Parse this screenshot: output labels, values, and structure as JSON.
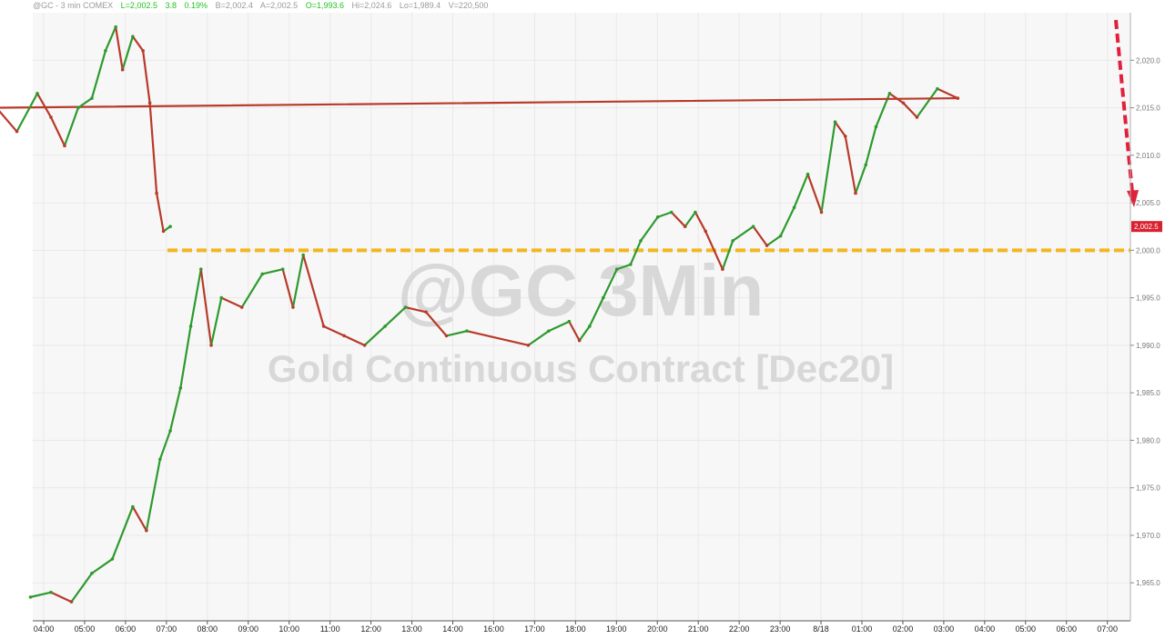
{
  "header": {
    "symbol": "@GC - 3 min  COMEX",
    "last": "L=2,002.5",
    "change": "3.8",
    "change_pct": "0.19%",
    "bid": "B=2,002.4",
    "ask": "A=2,002.5",
    "open": "O=1,993.6",
    "high": "Hi=2,024.6",
    "low": "Lo=1,989.4",
    "volume": "V=220,500"
  },
  "watermark": {
    "line1": "@GC 3Min",
    "line2": "Gold Continuous Contract [Dec20]"
  },
  "colors": {
    "up": "#2e9a2e",
    "down": "#b83a2a",
    "level_line": "#f2b61f",
    "arrow": "#e0213b",
    "last_price_tag": "#d9202f",
    "plot_bg": "#f7f7f7",
    "watermark": "#d4d4d4"
  },
  "chart_data": {
    "type": "line",
    "title": "",
    "xlabel": "",
    "ylabel": "",
    "ylim": [
      1961,
      2025
    ],
    "y_ticks": [
      1965.0,
      1970.0,
      1975.0,
      1980.0,
      1985.0,
      1990.0,
      1995.0,
      2000.0,
      2005.0,
      2010.0,
      2015.0,
      2020.0
    ],
    "y_tick_labels": [
      "1,965.0",
      "1,970.0",
      "1,975.0",
      "1,980.0",
      "1,985.0",
      "1,990.0",
      "1,995.0",
      "2,000.0",
      "2,005.0",
      "2,010.0",
      "2,015.0",
      "2,020.0"
    ],
    "x_tick_labels": [
      "04:00",
      "05:00",
      "06:00",
      "07:00",
      "08:00",
      "09:00",
      "10:00",
      "11:00",
      "12:00",
      "13:00",
      "14:00",
      "16:00",
      "17:00",
      "18:00",
      "19:00",
      "20:00",
      "21:00",
      "22:00",
      "23:00",
      "8/18",
      "01:00",
      "02:00",
      "03:00",
      "04:00",
      "05:00",
      "06:00",
      "07:00"
    ],
    "series": [
      {
        "x": [
          "03:50",
          "04:20",
          "04:50",
          "05:20",
          "05:50",
          "06:20",
          "06:40",
          "07:00",
          "07:15",
          "07:30",
          "07:45",
          "08:00",
          "08:15",
          "08:30",
          "09:00",
          "09:30",
          "10:00",
          "10:15",
          "10:30",
          "11:00",
          "11:30",
          "12:00",
          "12:30",
          "13:00",
          "13:30",
          "14:00",
          "14:30",
          "16:00",
          "16:30",
          "17:00",
          "17:15",
          "17:30",
          "17:50",
          "18:10",
          "18:30",
          "18:45",
          "19:10",
          "19:30",
          "19:50",
          "20:05",
          "20:20",
          "20:45",
          "21:00",
          "21:30",
          "21:50",
          "22:10",
          "22:30",
          "22:50",
          "23:10",
          "23:30",
          "23:45",
          "8/18",
          "00:15",
          "00:30",
          "00:50",
          "01:10",
          "01:30",
          "02:00",
          "02:30",
          "03:00",
          "03:30",
          "04:00",
          "04:20",
          "04:40",
          "05:00",
          "05:20",
          "05:40",
          "05:55",
          "06:05",
          "06:20",
          "06:35",
          "06:45",
          "06:55",
          "07:05",
          "07:15"
        ],
        "values": [
          1963.5,
          1964.0,
          1963.0,
          1966.0,
          1967.5,
          1973.0,
          1970.5,
          1978.0,
          1981.0,
          1985.5,
          1992.0,
          1998.0,
          1990.0,
          1995.0,
          1994.0,
          1997.5,
          1998.0,
          1994.0,
          1999.5,
          1992.0,
          1991.0,
          1990.0,
          1992.0,
          1994.0,
          1993.5,
          1991.0,
          1991.5,
          1990.0,
          1991.5,
          1992.5,
          1990.5,
          1992.0,
          1995.0,
          1998.0,
          1998.5,
          2001.0,
          2003.5,
          2004.0,
          2002.5,
          2004.0,
          2002.0,
          1998.0,
          2001.0,
          2002.5,
          2000.5,
          2001.5,
          2004.5,
          2008.0,
          2004.0,
          2013.5,
          2012.0,
          2006.0,
          2009.0,
          2013.0,
          2016.5,
          2015.5,
          2014.0,
          2017.0,
          2016.0,
          2015.0,
          2012.5,
          2016.5,
          2014.0,
          2011.0,
          2015.0,
          2016.0,
          2021.0,
          2023.5,
          2019.0,
          2022.5,
          2021.0,
          2015.5,
          2006.0,
          2002.0,
          2002.5
        ]
      }
    ],
    "reference_lines": [
      {
        "y": 2000.0,
        "style": "dashed"
      }
    ],
    "last_price": {
      "value": 2002.5,
      "label": "2,002.5"
    },
    "grid": true,
    "legend": "none"
  }
}
